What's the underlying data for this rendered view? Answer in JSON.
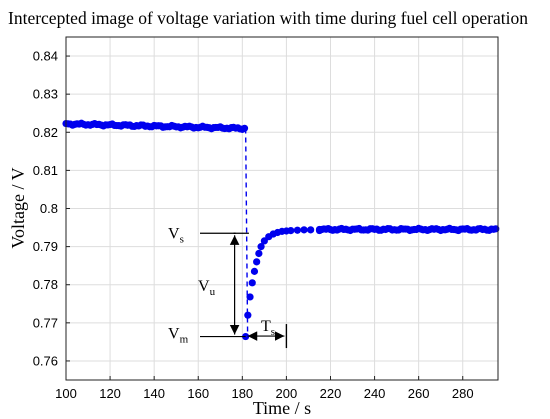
{
  "chart_data": {
    "type": "scatter",
    "title": "Intercepted image of voltage variation with time during fuel cell operation",
    "xlabel": "Time / s",
    "ylabel": "Voltage / V",
    "xlim": [
      100,
      296
    ],
    "ylim": [
      0.755,
      0.845
    ],
    "xticks": [
      100,
      120,
      140,
      160,
      180,
      200,
      220,
      240,
      260,
      280
    ],
    "yticks": [
      0.76,
      0.77,
      0.78,
      0.79,
      0.8,
      0.81,
      0.82,
      0.83,
      0.84
    ],
    "xtick_labels": [
      "100",
      "120",
      "140",
      "160",
      "180",
      "200",
      "220",
      "240",
      "260",
      "280"
    ],
    "ytick_labels": [
      "0.76",
      "0.77",
      "0.78",
      "0.79",
      "0.8",
      "0.81",
      "0.82",
      "0.83",
      "0.84"
    ],
    "grid": true,
    "series": [
      {
        "color": "#0000ee",
        "marker": "circle",
        "line_style": "dashed",
        "segments": [
          {
            "type": "steady",
            "x_start": 100,
            "x_end": 181.5,
            "y_start": 0.8222,
            "y_end": 0.821
          },
          {
            "type": "drop",
            "x": 181.5,
            "y_start": 0.821,
            "y_end": 0.7664
          },
          {
            "type": "recovery",
            "points": [
              [
                181.5,
                0.7664
              ],
              [
                182.5,
                0.772
              ],
              [
                183.5,
                0.7768
              ],
              [
                184.5,
                0.7805
              ],
              [
                185.5,
                0.7835
              ],
              [
                186.5,
                0.786
              ],
              [
                187.5,
                0.7882
              ],
              [
                188.5,
                0.79
              ],
              [
                190,
                0.7915
              ],
              [
                192,
                0.7926
              ],
              [
                194,
                0.7933
              ],
              [
                196,
                0.7937
              ],
              [
                198,
                0.794
              ],
              [
                200,
                0.7941
              ],
              [
                202,
                0.7942
              ],
              [
                205,
                0.7943
              ],
              [
                208,
                0.7944
              ],
              [
                211,
                0.7944
              ],
              [
                215,
                0.7945
              ]
            ]
          },
          {
            "type": "steady",
            "x_start": 215,
            "x_end": 295,
            "y_start": 0.7945,
            "y_end": 0.7945
          }
        ]
      }
    ],
    "annotations": {
      "vs": {
        "text": "V",
        "sub": "s",
        "x": 183,
        "y": 0.7935
      },
      "vm": {
        "text": "V",
        "sub": "m",
        "x": 181.5,
        "y": 0.7664
      },
      "vu": {
        "text": "V",
        "sub": "u",
        "x": 176.5
      },
      "ts": {
        "text": "T",
        "sub": "s",
        "x_start": 181.5,
        "x_end": 200
      }
    }
  }
}
